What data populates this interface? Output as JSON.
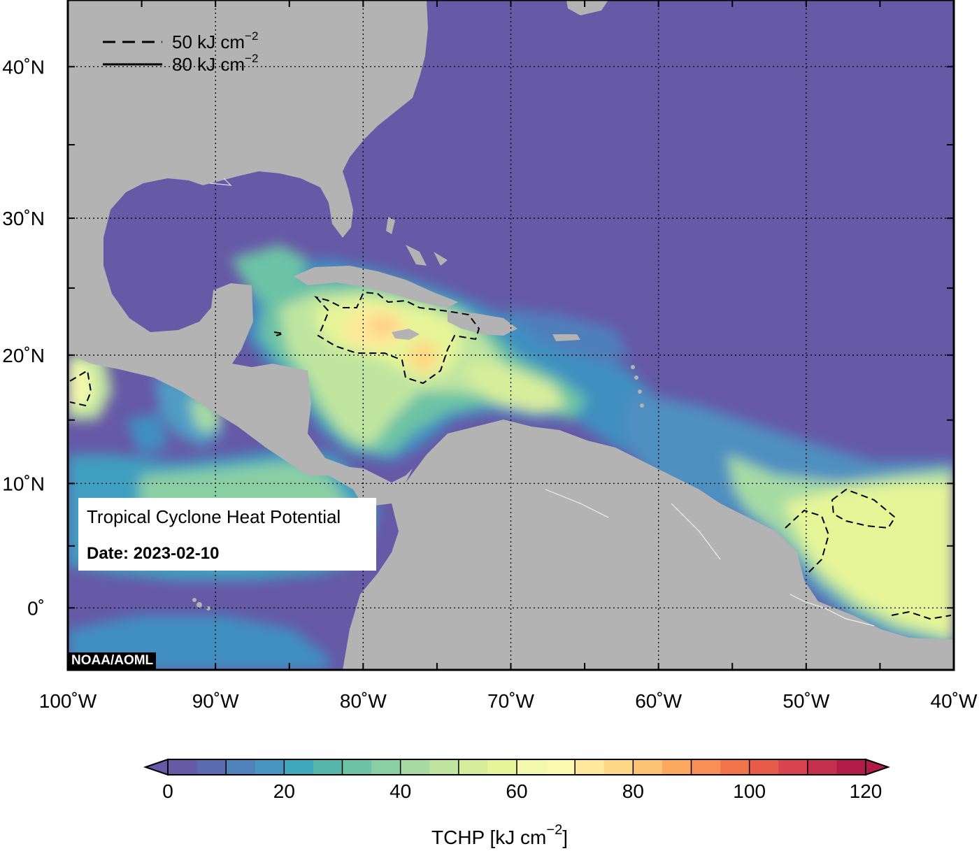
{
  "info_box": {
    "title": "Tropical Cyclone Heat Potential",
    "date_label": "Date:",
    "date_value": "2023-02-10"
  },
  "credit": "NOAA/AOML",
  "contour_legend": [
    {
      "style": "dashed",
      "label": "50 kJ cm",
      "superscript": "−2"
    },
    {
      "style": "solid",
      "label": "80 kJ cm",
      "superscript": "−2"
    }
  ],
  "map": {
    "lon_range": [
      -100,
      -40
    ],
    "lat_range": [
      -5,
      44
    ],
    "ocean_base_color": "#6659a6",
    "land_color": "#b3b3b3",
    "lon_ticks": [
      {
        "value": -100,
        "label": "100˚W"
      },
      {
        "value": -90,
        "label": "90˚W"
      },
      {
        "value": -80,
        "label": "80˚W"
      },
      {
        "value": -70,
        "label": "70˚W"
      },
      {
        "value": -60,
        "label": "60˚W"
      },
      {
        "value": -50,
        "label": "50˚W"
      },
      {
        "value": -40,
        "label": "40˚W"
      }
    ],
    "lat_ticks": [
      {
        "value": 40,
        "label": "40˚N"
      },
      {
        "value": 30,
        "label": "30˚N"
      },
      {
        "value": 20,
        "label": "20˚N"
      },
      {
        "value": 10,
        "label": "10˚N"
      },
      {
        "value": 0,
        "label": "0˚"
      }
    ]
  },
  "colorbar": {
    "title": "TCHP [kJ cm",
    "title_superscript": "−2",
    "title_end": "]",
    "min": 0,
    "max": 120,
    "step": 5,
    "colors": [
      "#6659a6",
      "#5a6bb0",
      "#4f82bb",
      "#4796c1",
      "#3fa9bd",
      "#55b7ac",
      "#6cc3a5",
      "#8acfa4",
      "#a6dba4",
      "#bfe5a0",
      "#d6ee9b",
      "#e6f598",
      "#f2f9ac",
      "#fbf8b0",
      "#fee99a",
      "#fed886",
      "#fdc273",
      "#fca95f",
      "#f98f54",
      "#f3734b",
      "#e85b49",
      "#d9434e",
      "#c72f4f",
      "#b21b48"
    ],
    "ticks": [
      {
        "value": 0,
        "label": "0"
      },
      {
        "value": 20,
        "label": "20"
      },
      {
        "value": 40,
        "label": "40"
      },
      {
        "value": 60,
        "label": "60"
      },
      {
        "value": 80,
        "label": "80"
      },
      {
        "value": 100,
        "label": "100"
      },
      {
        "value": 120,
        "label": "120"
      }
    ]
  }
}
